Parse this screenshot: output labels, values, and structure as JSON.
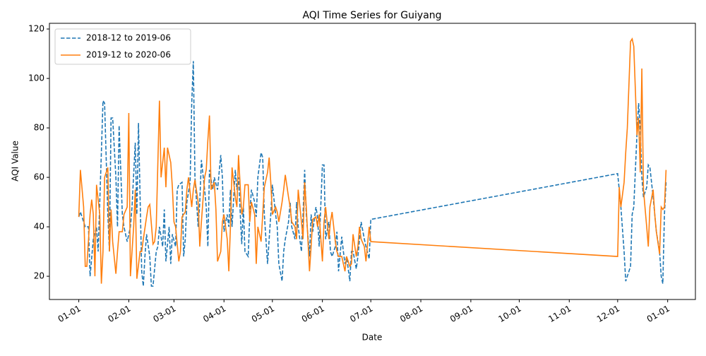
{
  "chart_data": {
    "type": "line",
    "title": "AQI Time Series for Guiyang",
    "x_label": "Date",
    "y_label": "AQI Value",
    "xlim": [
      -18.2,
      382.2
    ],
    "ylim": [
      10.6,
      122.3
    ],
    "xticks": [
      {
        "value": 0,
        "label": "01-01"
      },
      {
        "value": 31,
        "label": "02-01"
      },
      {
        "value": 59,
        "label": "03-01"
      },
      {
        "value": 90,
        "label": "04-01"
      },
      {
        "value": 120,
        "label": "05-01"
      },
      {
        "value": 151,
        "label": "06-01"
      },
      {
        "value": 181,
        "label": "07-01"
      },
      {
        "value": 212,
        "label": "08-01"
      },
      {
        "value": 243,
        "label": "09-01"
      },
      {
        "value": 273,
        "label": "10-01"
      },
      {
        "value": 304,
        "label": "11-01"
      },
      {
        "value": 334,
        "label": "12-01"
      },
      {
        "value": 365,
        "label": "01-01"
      }
    ],
    "yticks": [
      20,
      40,
      60,
      80,
      100,
      120
    ],
    "grid": false,
    "legend": "upper left",
    "series": [
      {
        "name": "2018-12 to 2019-06",
        "color": "#1f77b4",
        "linestyle": "dashed",
        "x": [
          0,
          1,
          4,
          6,
          7,
          9,
          11,
          12,
          14,
          15,
          16,
          18,
          19,
          20,
          21,
          23,
          24,
          25,
          27,
          28,
          30,
          32,
          33,
          35,
          36,
          37,
          39,
          40,
          41,
          42,
          44,
          45,
          46,
          48,
          49,
          50,
          52,
          53,
          54,
          56,
          57,
          58,
          60,
          61,
          62,
          64,
          65,
          66,
          67,
          69,
          70,
          71,
          72,
          74,
          75,
          76,
          78,
          79,
          80,
          81,
          83,
          84,
          86,
          88,
          89,
          90,
          92,
          93,
          94,
          95,
          97,
          98,
          99,
          101,
          102,
          103,
          105,
          106,
          107,
          109,
          110,
          111,
          113,
          114,
          115,
          117,
          118,
          119,
          120,
          122,
          123,
          124,
          126,
          127,
          128,
          130,
          131,
          132,
          134,
          135,
          136,
          138,
          139,
          140,
          141,
          143,
          144,
          145,
          147,
          148,
          149,
          151,
          152,
          153,
          155,
          156,
          157,
          159,
          160,
          161,
          163,
          164,
          165,
          166,
          168,
          169,
          170,
          172,
          173,
          174,
          175,
          177,
          178,
          180,
          181,
          334,
          335,
          336,
          338,
          339,
          340,
          342,
          343,
          344,
          346,
          347,
          348,
          349,
          350,
          352,
          353,
          354,
          356,
          357,
          358,
          360,
          361,
          362,
          363,
          364
        ],
        "values": [
          44,
          46,
          40,
          40,
          20,
          35,
          40,
          30,
          70,
          91,
          90,
          45,
          30,
          84,
          84,
          60,
          40,
          81,
          45,
          40,
          34,
          40,
          48,
          74,
          45,
          82,
          22,
          16,
          28,
          37,
          28,
          16,
          16,
          30,
          32,
          40,
          32,
          47,
          26,
          40,
          25,
          37,
          32,
          55,
          57,
          58,
          28,
          35,
          50,
          58,
          90,
          107,
          60,
          40,
          50,
          67,
          55,
          48,
          32,
          63,
          55,
          60,
          55,
          69,
          60,
          38,
          45,
          40,
          55,
          40,
          63,
          55,
          60,
          33,
          48,
          30,
          28,
          45,
          55,
          50,
          44,
          60,
          70,
          68,
          45,
          25,
          35,
          45,
          57,
          45,
          40,
          25,
          18,
          30,
          35,
          42,
          50,
          40,
          35,
          50,
          40,
          30,
          45,
          63,
          45,
          28,
          45,
          38,
          48,
          44,
          32,
          65,
          65,
          35,
          42,
          30,
          28,
          32,
          38,
          22,
          36,
          30,
          25,
          28,
          18,
          30,
          30,
          23,
          28,
          35,
          42,
          35,
          32,
          27,
          43,
          61.5,
          55,
          48,
          30,
          18,
          20,
          24,
          45,
          48,
          78,
          90,
          80,
          60,
          52,
          56,
          65,
          64,
          52,
          45,
          38,
          30,
          20,
          17,
          45,
          58
        ]
      },
      {
        "name": "2019-12 to 2020-06",
        "color": "#ff7f0e",
        "linestyle": "solid",
        "x": [
          0,
          1,
          3,
          4,
          5,
          7,
          8,
          9,
          10,
          11,
          13,
          14,
          15,
          16,
          18,
          19,
          20,
          21,
          23,
          24,
          25,
          27,
          28,
          30,
          31,
          32,
          34,
          35,
          36,
          38,
          39,
          40,
          42,
          43,
          44,
          46,
          47,
          48,
          50,
          51,
          53,
          54,
          55,
          57,
          58,
          59,
          60,
          62,
          63,
          64,
          66,
          67,
          68,
          70,
          71,
          72,
          74,
          75,
          76,
          78,
          79,
          80,
          81,
          82,
          84,
          85,
          86,
          88,
          89,
          90,
          92,
          93,
          94,
          95,
          97,
          98,
          99,
          101,
          102,
          103,
          105,
          106,
          107,
          109,
          110,
          111,
          113,
          114,
          115,
          117,
          118,
          119,
          120,
          122,
          123,
          124,
          126,
          127,
          128,
          130,
          131,
          132,
          134,
          135,
          136,
          138,
          139,
          140,
          141,
          143,
          144,
          145,
          147,
          148,
          149,
          151,
          152,
          153,
          155,
          156,
          157,
          159,
          160,
          161,
          163,
          164,
          165,
          166,
          168,
          169,
          170,
          172,
          173,
          174,
          175,
          177,
          178,
          180,
          181,
          334,
          335,
          336,
          338,
          339,
          340,
          342,
          343,
          344,
          346,
          347,
          348,
          349,
          350,
          352,
          353,
          354,
          356,
          357,
          358,
          360,
          361,
          362,
          363,
          364
        ],
        "values": [
          44,
          63,
          48,
          24,
          24,
          45,
          51,
          45,
          20,
          57,
          45,
          17,
          30,
          60,
          64,
          30,
          47,
          34,
          21,
          30,
          38,
          38,
          45,
          48,
          86,
          20,
          40,
          55,
          19,
          30,
          30,
          35,
          44,
          48,
          49,
          33,
          34,
          40,
          91,
          60,
          72,
          56,
          72,
          66,
          56,
          42,
          40,
          26,
          30,
          44,
          46,
          55,
          60,
          48,
          55,
          59,
          50,
          32,
          42,
          60,
          63,
          75,
          85,
          55,
          58,
          47,
          26,
          30,
          42,
          45,
          35,
          22,
          40,
          64,
          52,
          48,
          69,
          45,
          48,
          57,
          57,
          42,
          50,
          45,
          25,
          40,
          34,
          45,
          56,
          62,
          68,
          58,
          45,
          48,
          46,
          42,
          50,
          55,
          61,
          52,
          48,
          42,
          40,
          35,
          55,
          42,
          35,
          58,
          48,
          22,
          32,
          43,
          44,
          40,
          45,
          26,
          42,
          48,
          35,
          42,
          46,
          34,
          30,
          28,
          28,
          25,
          22,
          28,
          24,
          25,
          37,
          28,
          32,
          40,
          35,
          32,
          26,
          40,
          34,
          28,
          56,
          48,
          58,
          70,
          80,
          115,
          116,
          113,
          77,
          84,
          62,
          104,
          55,
          40,
          32,
          48,
          55,
          45,
          38,
          29,
          48,
          47,
          48,
          63
        ]
      }
    ]
  }
}
